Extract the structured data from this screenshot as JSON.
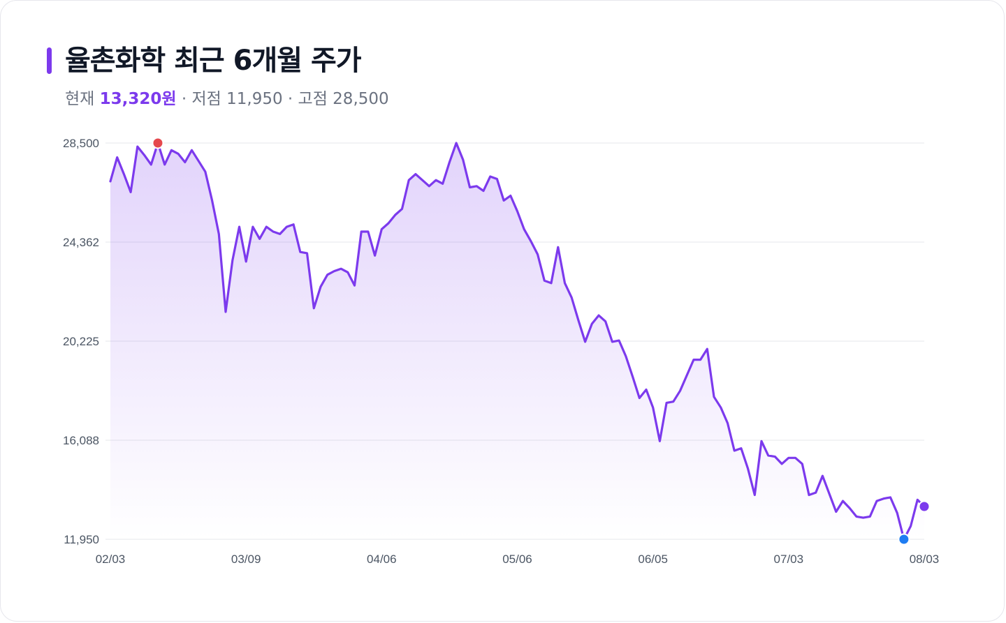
{
  "header": {
    "title": "율촌화학 최근 6개월 주가",
    "current_label": "현재",
    "current_value": "13,320원",
    "low_text": "· 저점 11,950",
    "high_text": "· 고점 28,500"
  },
  "colors": {
    "accent": "#7c3aed",
    "line": "#7c3aed",
    "high_marker": "#e5484d",
    "low_marker": "#1e7cf2"
  },
  "chart_data": {
    "type": "area",
    "title": "율촌화학 최근 6개월 주가",
    "xlabel": "",
    "ylabel": "",
    "ylim": [
      11950,
      28500
    ],
    "yticks": [
      "28,500",
      "24,362",
      "20,225",
      "16,088",
      "11,950"
    ],
    "ytick_values": [
      28500,
      24362,
      20225,
      16088,
      11950
    ],
    "xticks": [
      "02/03",
      "03/09",
      "04/06",
      "05/06",
      "06/05",
      "07/03",
      "08/03"
    ],
    "xtick_positions": [
      0,
      20,
      40,
      60,
      80,
      100,
      120
    ],
    "grid": true,
    "series": [
      {
        "values": [
          26900,
          27900,
          27200,
          26450,
          28350,
          28000,
          27600,
          28500,
          27600,
          28200,
          28050,
          27700,
          28200,
          27750,
          27300,
          26100,
          24700,
          21450,
          23600,
          25000,
          23550,
          25000,
          24500,
          25000,
          24800,
          24700,
          25000,
          25100,
          23950,
          23900,
          21600,
          22500,
          23000,
          23150,
          23250,
          23100,
          22550,
          24800,
          24800,
          23800,
          24900,
          25150,
          25500,
          25750,
          26950,
          27200,
          26950,
          26700,
          26950,
          26800,
          27700,
          28500,
          27800,
          26650,
          26700,
          26500,
          27100,
          27000,
          26100,
          26300,
          25650,
          24900,
          24400,
          23850,
          22750,
          22650,
          24150,
          22650,
          22050,
          21100,
          20200,
          20950,
          21300,
          21050,
          20200,
          20250,
          19600,
          18750,
          17850,
          18200,
          17450,
          16050,
          17650,
          17700,
          18150,
          18800,
          19450,
          19450,
          19900,
          17900,
          17450,
          16800,
          15650,
          15750,
          14900,
          13800,
          16050,
          15450,
          15400,
          15100,
          15350,
          15350,
          15100,
          13800,
          13900,
          14600,
          13850,
          13100,
          13550,
          13250,
          12900,
          12850,
          12900,
          13550,
          13650,
          13700,
          13050,
          11950,
          12500,
          13600,
          13320
        ]
      }
    ],
    "markers": [
      {
        "label": "고점",
        "value": 28500,
        "index": 7
      },
      {
        "label": "저점",
        "value": 11950,
        "index": 117
      },
      {
        "label": "현재",
        "value": 13320,
        "index": 120
      }
    ]
  }
}
